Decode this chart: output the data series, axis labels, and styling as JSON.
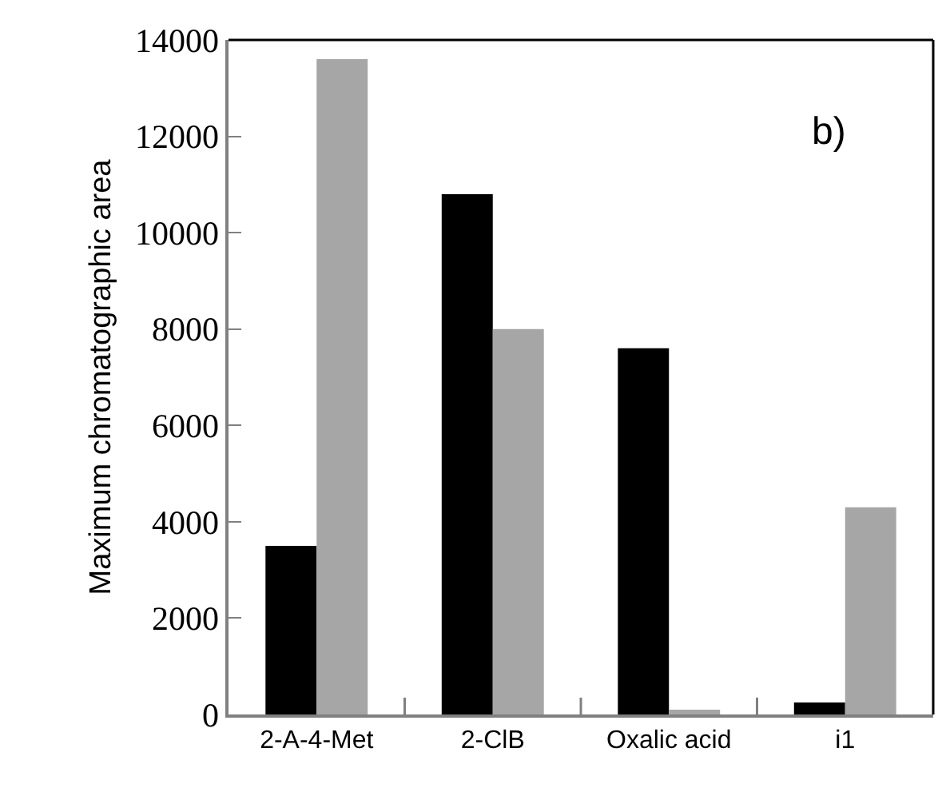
{
  "chart_data": {
    "type": "bar",
    "ylabel": "Maximum chromatographic area",
    "categories": [
      "2-A-4-Met",
      "2-ClB",
      "Oxalic acid",
      "i1"
    ],
    "series": [
      {
        "color": "#000000",
        "values": [
          3500,
          10800,
          7600,
          250
        ]
      },
      {
        "color": "#a6a6a6",
        "values": [
          13600,
          8000,
          100,
          4300
        ]
      }
    ],
    "ylim": [
      0,
      14000
    ],
    "yticks": [
      0,
      2000,
      4000,
      6000,
      8000,
      10000,
      12000,
      14000
    ],
    "annotations": [
      "b)"
    ]
  }
}
